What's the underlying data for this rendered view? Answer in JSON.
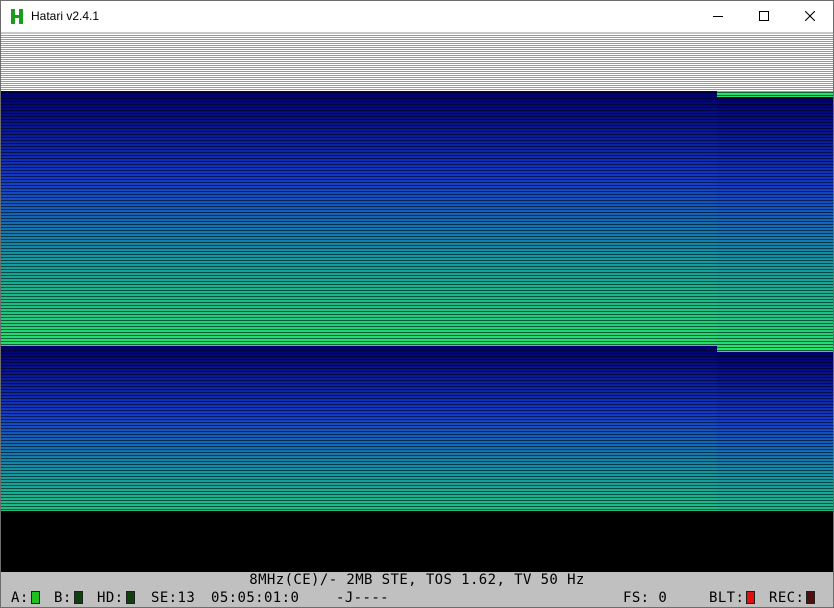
{
  "window": {
    "title": "Hatari v2.4.1",
    "icon": "hatari-h-icon",
    "controls": [
      "minimize-icon",
      "maximize-icon",
      "close-icon"
    ]
  },
  "screen": {
    "description_colors": {
      "border_white": "#ffffff",
      "border_black": "#000000",
      "raster_dark_blue": "#000080",
      "raster_green": "#30e060"
    }
  },
  "statusbar": {
    "line1": "8MHz(CE)/- 2MB STE, TOS 1.62, TV 50 Hz",
    "drive_a_label": "A:",
    "drive_a_led": "#20c020",
    "drive_b_label": "B:",
    "drive_b_led": "#104010",
    "hd_label": "HD:",
    "hd_led": "#104010",
    "se_label": "SE:13",
    "time": "05:05:01:0",
    "joystick": "-J----",
    "fs_label": "FS:",
    "fs_value": "0",
    "blt_label": "BLT:",
    "blt_led": "#e01010",
    "rec_label": "REC:",
    "rec_led": "#501010"
  }
}
